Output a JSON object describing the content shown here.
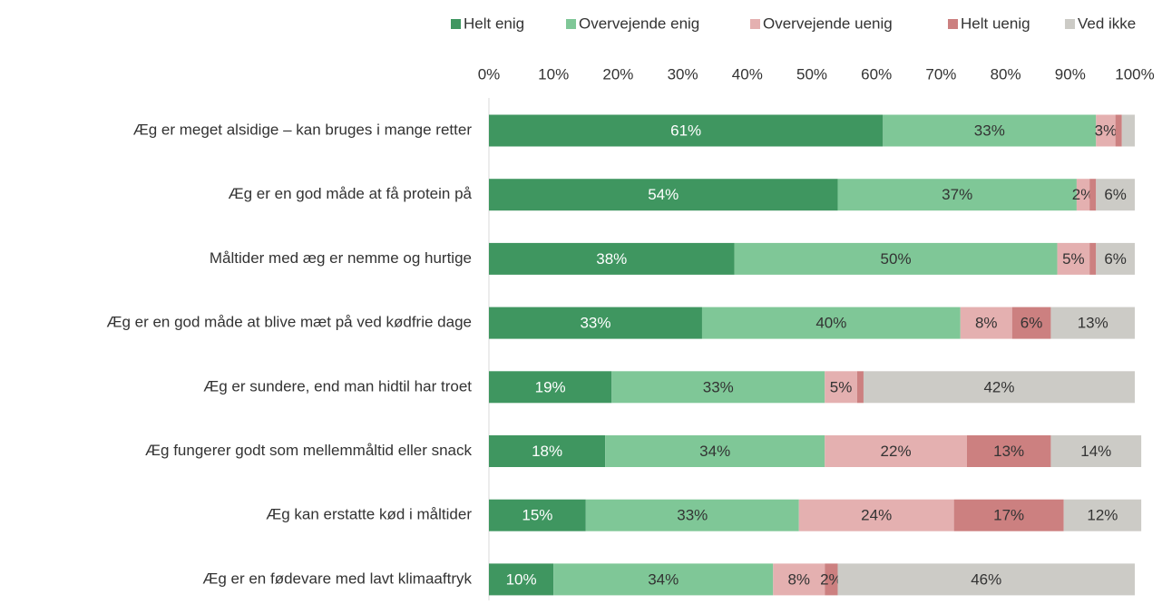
{
  "chart_data": {
    "type": "stacked_bar_horizontal",
    "categories": [
      "Æg er meget alsidige – kan bruges i mange retter",
      "Æg er en god måde at få protein på",
      "Måltider med æg er nemme og hurtige",
      "Æg er en god måde at blive mæt på ved kødfrie dage",
      "Æg er sundere, end man hidtil har troet",
      "Æg fungerer godt som mellemmåltid eller snack",
      "Æg kan erstatte kød i måltider",
      "Æg er en fødevare med lavt klimaaftryk"
    ],
    "series": [
      {
        "name": "Helt enig",
        "color": "#3f9660",
        "values": [
          61,
          54,
          38,
          33,
          19,
          18,
          15,
          10
        ],
        "value_labels": [
          "61%",
          "54%",
          "38%",
          "33%",
          "19%",
          "18%",
          "15%",
          "10%"
        ]
      },
      {
        "name": "Overvejende enig",
        "color": "#7fc797",
        "values": [
          33,
          37,
          50,
          40,
          33,
          34,
          33,
          34
        ],
        "value_labels": [
          "33%",
          "37%",
          "50%",
          "40%",
          "33%",
          "34%",
          "33%",
          "34%"
        ]
      },
      {
        "name": "Overvejende uenig",
        "color": "#e4b0b0",
        "values": [
          3,
          2,
          5,
          8,
          5,
          22,
          24,
          8
        ],
        "value_labels": [
          "3%",
          "2%",
          "5%",
          "8%",
          "5%",
          "22%",
          "24%",
          "8%"
        ]
      },
      {
        "name": "Helt uenig",
        "color": "#cc8080",
        "values": [
          1,
          1,
          1,
          6,
          1,
          13,
          17,
          2
        ],
        "value_labels": [
          null,
          null,
          null,
          "6%",
          null,
          "13%",
          "17%",
          "2%"
        ]
      },
      {
        "name": "Ved ikke",
        "color": "#cccbc6",
        "values": [
          2,
          6,
          6,
          13,
          42,
          14,
          12,
          46
        ],
        "value_labels": [
          null,
          "6%",
          "6%",
          "13%",
          "42%",
          "14%",
          "12%",
          "46%"
        ]
      }
    ],
    "xlim": [
      0,
      100
    ],
    "xticks": [
      {
        "value": 0,
        "label": "0%"
      },
      {
        "value": 10,
        "label": "10%"
      },
      {
        "value": 20,
        "label": "20%"
      },
      {
        "value": 30,
        "label": "30%"
      },
      {
        "value": 40,
        "label": "40%"
      },
      {
        "value": 50,
        "label": "50%"
      },
      {
        "value": 60,
        "label": "60%"
      },
      {
        "value": 70,
        "label": "70%"
      },
      {
        "value": 80,
        "label": "80%"
      },
      {
        "value": 90,
        "label": "90%"
      },
      {
        "value": 100,
        "label": "100%"
      }
    ],
    "legend": "top"
  }
}
